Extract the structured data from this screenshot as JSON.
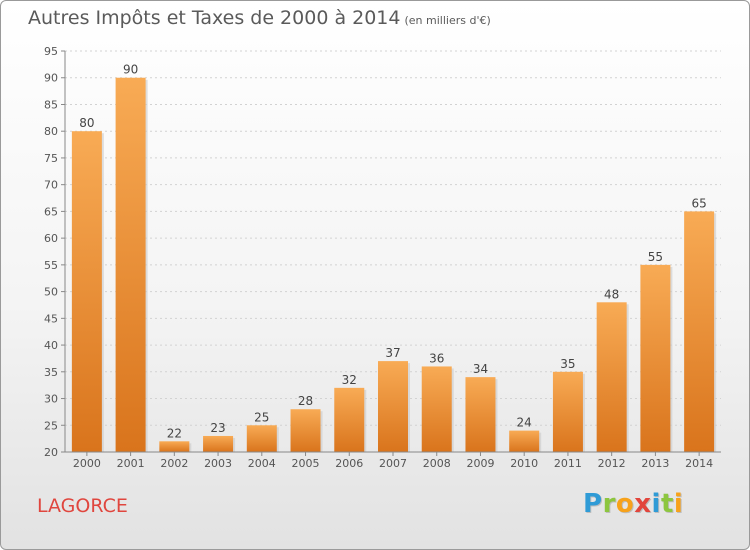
{
  "chart_data": {
    "type": "bar",
    "title": "Autres Impôts et Taxes de 2000 à 2014",
    "subtitle": "(en milliers d'€)",
    "categories": [
      "2000",
      "2001",
      "2002",
      "2003",
      "2004",
      "2005",
      "2006",
      "2007",
      "2008",
      "2009",
      "2010",
      "2011",
      "2012",
      "2013",
      "2014"
    ],
    "values": [
      80,
      90,
      22,
      23,
      25,
      28,
      32,
      37,
      36,
      34,
      24,
      35,
      48,
      55,
      65
    ],
    "ylim": [
      20,
      95
    ],
    "yticks": [
      20,
      25,
      30,
      35,
      40,
      45,
      50,
      55,
      60,
      65,
      70,
      75,
      80,
      85,
      90,
      95
    ],
    "grid": true,
    "bar_color": "#f0963c",
    "xlabel": "",
    "ylabel": ""
  },
  "footer": {
    "town": "LAGORCE",
    "logo_letters": [
      {
        "ch": "P",
        "color": "#2f9bd6"
      },
      {
        "ch": "r",
        "color": "#8dc63f"
      },
      {
        "ch": "o",
        "color": "#f7a21b"
      },
      {
        "ch": "x",
        "color": "#e2453c"
      },
      {
        "ch": "i",
        "color": "#2f9bd6"
      },
      {
        "ch": "t",
        "color": "#8dc63f"
      },
      {
        "ch": "i",
        "color": "#f7a21b"
      }
    ]
  }
}
